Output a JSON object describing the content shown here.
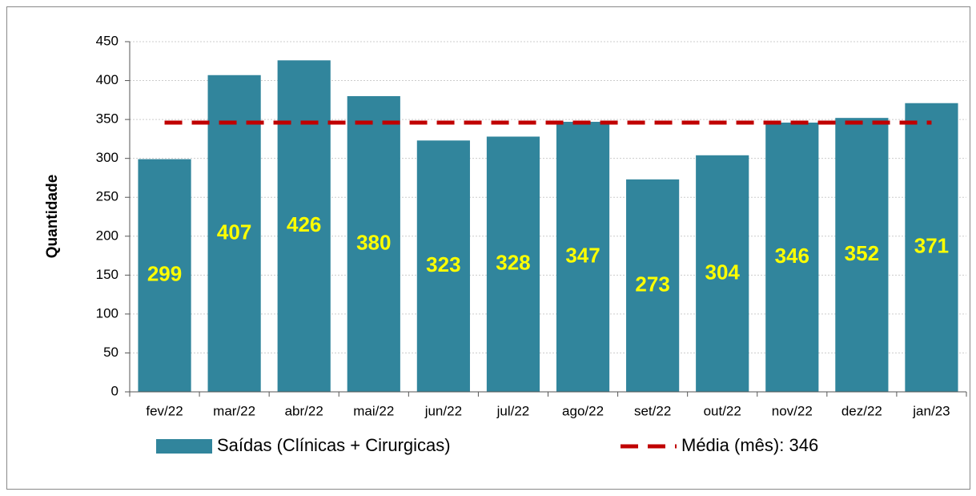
{
  "chart_data": {
    "type": "bar",
    "y_label": "Quantidade",
    "categories": [
      "fev/22",
      "mar/22",
      "abr/22",
      "mai/22",
      "jun/22",
      "jul/22",
      "ago/22",
      "set/22",
      "out/22",
      "nov/22",
      "dez/22",
      "jan/23"
    ],
    "series": [
      {
        "name": "Saídas (Clínicas + Cirurgicas)",
        "type": "bar",
        "color": "#31859c",
        "label_color": "#ffff00",
        "values": [
          299,
          407,
          426,
          380,
          323,
          328,
          347,
          273,
          304,
          346,
          352,
          371
        ]
      },
      {
        "name": "Média (mês): 346",
        "type": "line",
        "color": "#c00000",
        "dashed": true,
        "values": [
          346,
          346,
          346,
          346,
          346,
          346,
          346,
          346,
          346,
          346,
          346,
          346
        ]
      }
    ],
    "ylim": [
      0,
      450
    ],
    "yticks": [
      0,
      50,
      100,
      150,
      200,
      250,
      300,
      350,
      400,
      450
    ],
    "grid": true,
    "legend": "bottom"
  }
}
